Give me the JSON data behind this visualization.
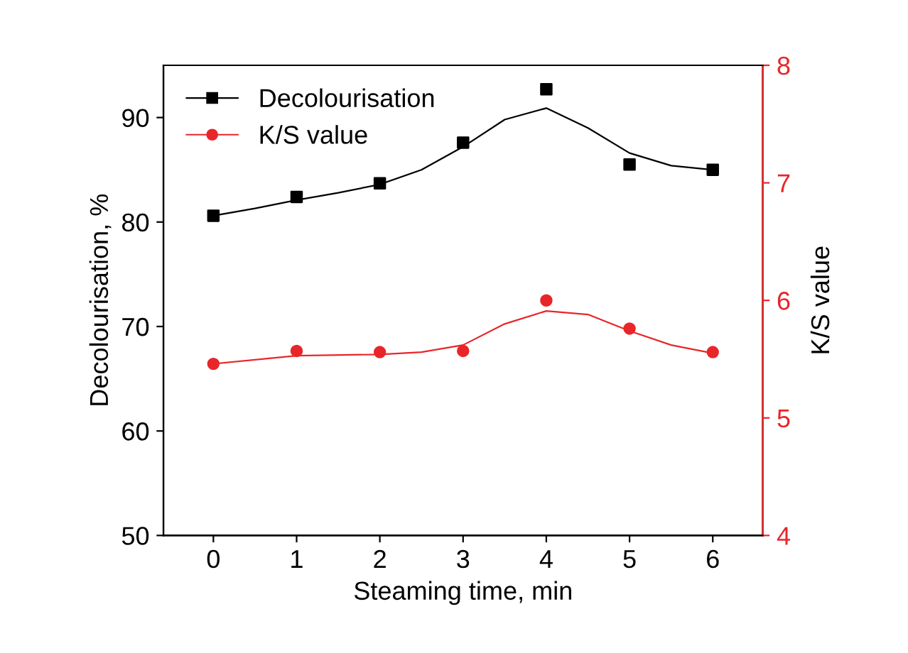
{
  "chart_data": {
    "type": "scatter",
    "xlabel": "Steaming time, min",
    "ylabel": "Decolourisation, %",
    "y2label": "K/S value",
    "x": [
      0,
      1,
      2,
      3,
      4,
      5,
      6
    ],
    "series": [
      {
        "name": "Decolourisation",
        "color": "#000000",
        "marker": "square",
        "values": [
          80.6,
          82.4,
          83.7,
          87.6,
          92.7,
          85.5,
          85.0
        ]
      },
      {
        "name": "K/S value",
        "color": "#e8262a",
        "marker": "circle",
        "axis": "y2",
        "values": [
          5.46,
          5.57,
          5.56,
          5.57,
          6.0,
          5.76,
          5.56
        ]
      },
      {
        "type": "line",
        "color": "#000000",
        "x": [
          0,
          0.5,
          1,
          1.5,
          2,
          2.5,
          3,
          3.5,
          4,
          4.5,
          5,
          5.5,
          6
        ],
        "values": [
          80.6,
          81.3,
          82.1,
          82.8,
          83.6,
          85.0,
          87.2,
          89.8,
          90.9,
          89.0,
          86.6,
          85.4,
          85.0
        ]
      },
      {
        "type": "line",
        "color": "#e8262a",
        "axis": "y2",
        "x": [
          0,
          1,
          2,
          2.5,
          3,
          3.5,
          4,
          4.5,
          5,
          5.5,
          6
        ],
        "values": [
          5.46,
          5.53,
          5.54,
          5.56,
          5.62,
          5.8,
          5.91,
          5.88,
          5.74,
          5.62,
          5.55
        ]
      }
    ],
    "xlim": [
      -0.6,
      6.6
    ],
    "xticks": [
      0,
      1,
      2,
      3,
      4,
      5,
      6
    ],
    "ylim": [
      50,
      95
    ],
    "yticks": [
      50,
      60,
      70,
      80,
      90
    ],
    "y2lim": [
      4,
      8
    ],
    "y2ticks": [
      4,
      5,
      6,
      7,
      8
    ],
    "legend": "top left",
    "grid": false
  }
}
